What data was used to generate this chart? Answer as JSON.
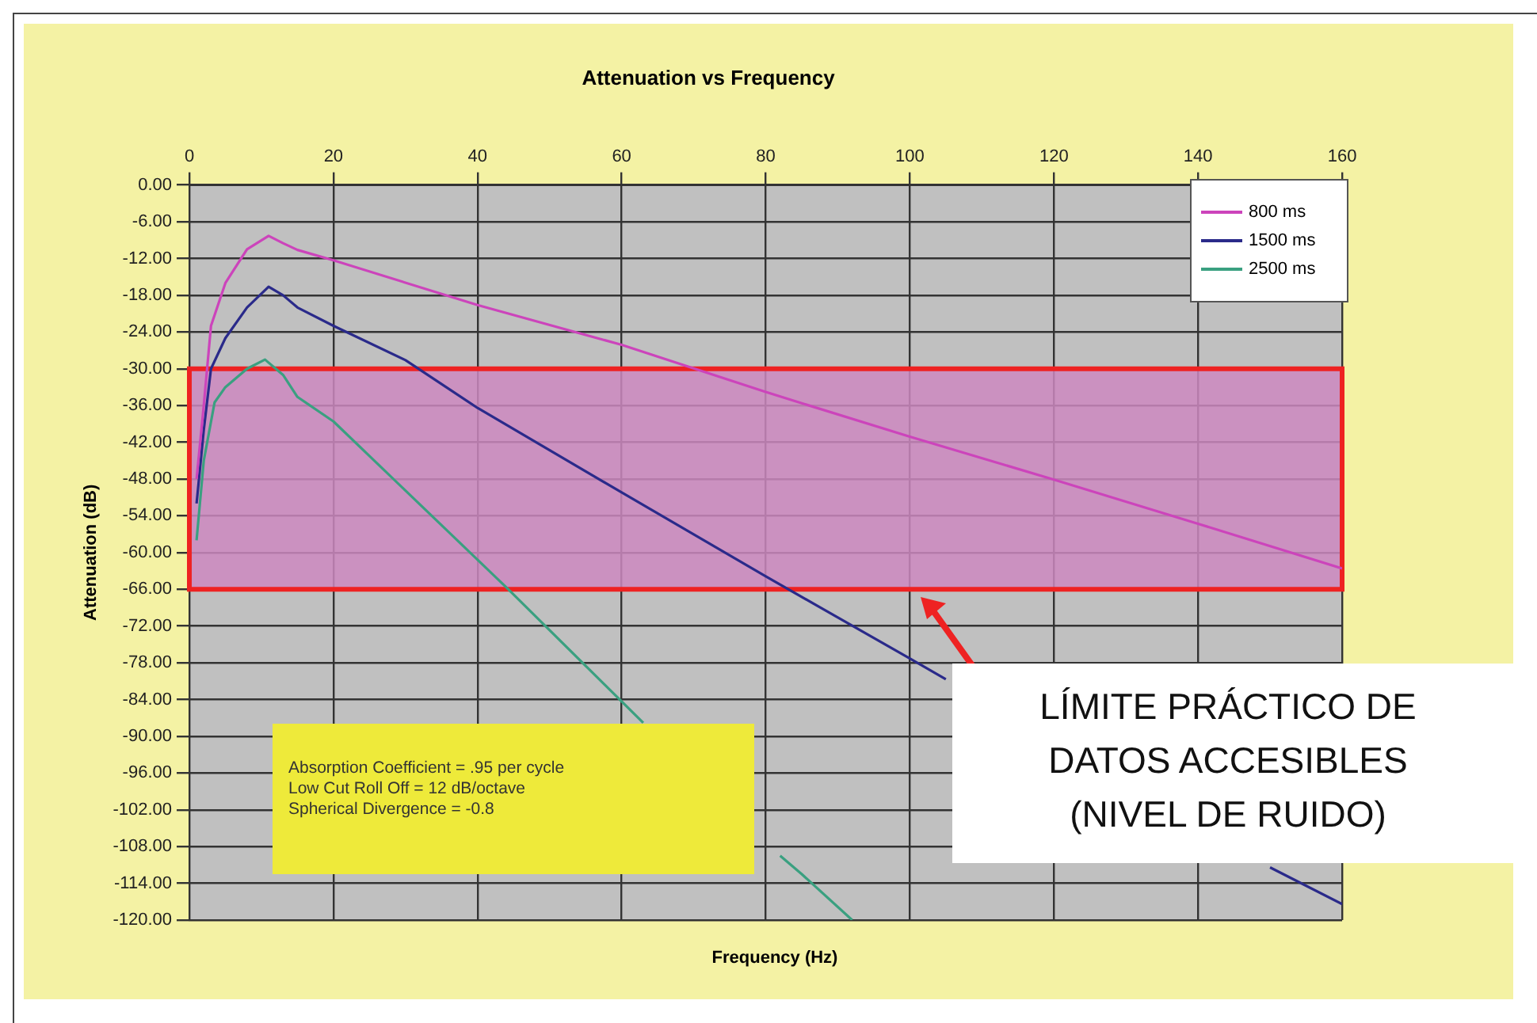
{
  "chart_data": {
    "type": "line",
    "title": "Attenuation vs Frequency",
    "xlabel": "Frequency (Hz)",
    "ylabel": "Attenuation (dB)",
    "xlim": [
      0,
      160
    ],
    "xticks": [
      0,
      20,
      40,
      60,
      80,
      100,
      120,
      140,
      160
    ],
    "ylim": [
      -120,
      0
    ],
    "yticks": [
      {
        "value": 0,
        "label": "0.00"
      },
      {
        "value": -6,
        "label": "-6.00"
      },
      {
        "value": -12,
        "label": "-12.00"
      },
      {
        "value": -18,
        "label": "-18.00"
      },
      {
        "value": -24,
        "label": "-24.00"
      },
      {
        "value": -30,
        "label": "-30.00"
      },
      {
        "value": -36,
        "label": "-36.00"
      },
      {
        "value": -42,
        "label": "-42.00"
      },
      {
        "value": -48,
        "label": "-48.00"
      },
      {
        "value": -54,
        "label": "-54.00"
      },
      {
        "value": -60,
        "label": "-60.00"
      },
      {
        "value": -66,
        "label": "-66.00"
      },
      {
        "value": -72,
        "label": "-72.00"
      },
      {
        "value": -78,
        "label": "-78.00"
      },
      {
        "value": -84,
        "label": "-84.00"
      },
      {
        "value": -90,
        "label": "-90.00"
      },
      {
        "value": -96,
        "label": "-96.00"
      },
      {
        "value": -102,
        "label": "-102.00"
      },
      {
        "value": -108,
        "label": "-108.00"
      },
      {
        "value": -114,
        "label": "-114.00"
      },
      {
        "value": -120,
        "label": "-120.00"
      }
    ],
    "grid": true,
    "legend": "top right",
    "marker": "none",
    "line_style": "solid",
    "series": [
      {
        "name": "800 ms",
        "color": "#cc44bb",
        "x": [
          1,
          2,
          3,
          5,
          8,
          11,
          13,
          15,
          20,
          40,
          60,
          80,
          100,
          120,
          140,
          160
        ],
        "values": [
          -48,
          -36,
          -23,
          -16,
          -10.5,
          -8.3,
          -9.5,
          -10.6,
          -12.3,
          -19.6,
          -26.1,
          -33.8,
          -41.1,
          -48.1,
          -55.3,
          -62.6
        ]
      },
      {
        "name": "1500 ms",
        "color": "#2a2a8a",
        "x": [
          1,
          2,
          3,
          5,
          8,
          11,
          13,
          15,
          20,
          30,
          40,
          60,
          80,
          100,
          105,
          110,
          140,
          150,
          160
        ],
        "values": [
          -52,
          -40,
          -30,
          -25,
          -20,
          -16.6,
          -18,
          -20,
          -23,
          -28.6,
          -36.4,
          -50.2,
          -63.9,
          -77.3,
          -80.7,
          null,
          null,
          -111.4,
          -117.4
        ]
      },
      {
        "name": "2500 ms",
        "color": "#3aa080",
        "x": [
          1,
          2,
          3.5,
          5,
          8,
          10.5,
          13,
          15,
          20,
          30,
          44,
          60,
          63,
          70,
          82,
          85,
          92
        ],
        "values": [
          -58,
          -45,
          -35.5,
          -33,
          -30,
          -28.5,
          -31,
          -34.6,
          -38.6,
          -49.9,
          -65.7,
          -84.3,
          -87.8,
          null,
          -109.5,
          -112.5,
          -120
        ]
      }
    ],
    "bands": [
      {
        "axis": "y",
        "from": -66,
        "to": -30,
        "color": "#cc88c0"
      }
    ],
    "annotations": [
      "Absorption Coefficient = .95 per cycle",
      "Low Cut Roll Off = 12 dB/octave",
      "Spherical Divergence = -0.8",
      "LÍMITE PRÁCTICO DE DATOS ACCESIBLES (NIVEL DE RUIDO)"
    ]
  }
}
